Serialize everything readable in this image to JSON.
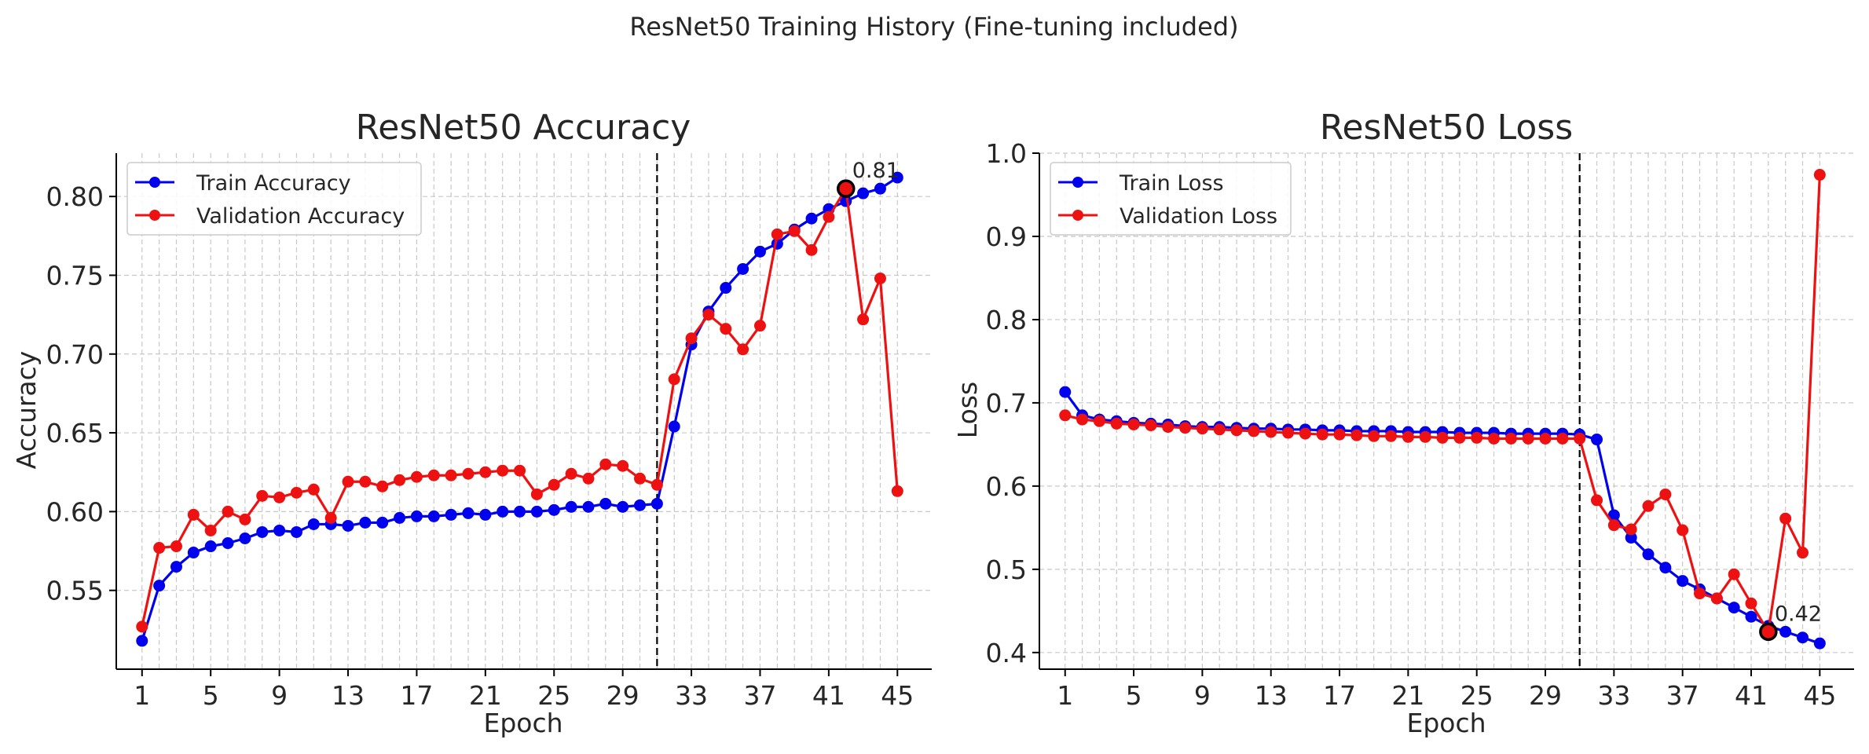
{
  "figure": {
    "suptitle": "ResNet50 Training History (Fine-tuning included)"
  },
  "chart_data": [
    {
      "type": "line",
      "title": "ResNet50 Accuracy",
      "xlabel": "Epoch",
      "ylabel": "Accuracy",
      "xlim": [
        -0.5,
        47
      ],
      "ylim": [
        0.5,
        0.8275
      ],
      "xticks": [
        1,
        5,
        9,
        13,
        17,
        21,
        25,
        29,
        33,
        37,
        41,
        45
      ],
      "yticks": [
        0.55,
        0.6,
        0.65,
        0.7,
        0.75,
        0.8
      ],
      "ytick_labels": [
        "0.55",
        "0.60",
        "0.65",
        "0.70",
        "0.75",
        "0.80"
      ],
      "grid": true,
      "legend_position": "top-left",
      "fine_tune_start_epoch": 31,
      "best": {
        "epoch": 42,
        "value": 0.805,
        "label": "0.81"
      },
      "x": [
        1,
        2,
        3,
        4,
        5,
        6,
        7,
        8,
        9,
        10,
        11,
        12,
        13,
        14,
        15,
        16,
        17,
        18,
        19,
        20,
        21,
        22,
        23,
        24,
        25,
        26,
        27,
        28,
        29,
        30,
        31,
        32,
        33,
        34,
        35,
        36,
        37,
        38,
        39,
        40,
        41,
        42,
        43,
        44,
        45
      ],
      "series": [
        {
          "name": "Train Accuracy",
          "color": "#0000ee",
          "values": [
            0.518,
            0.553,
            0.565,
            0.574,
            0.578,
            0.58,
            0.583,
            0.587,
            0.588,
            0.587,
            0.592,
            0.592,
            0.591,
            0.593,
            0.593,
            0.596,
            0.597,
            0.597,
            0.598,
            0.599,
            0.598,
            0.6,
            0.6,
            0.6,
            0.601,
            0.603,
            0.603,
            0.605,
            0.603,
            0.604,
            0.605,
            0.654,
            0.706,
            0.727,
            0.742,
            0.754,
            0.765,
            0.77,
            0.779,
            0.786,
            0.792,
            0.797,
            0.802,
            0.805,
            0.812
          ]
        },
        {
          "name": "Validation Accuracy",
          "color": "#ee1111",
          "values": [
            0.527,
            0.577,
            0.578,
            0.598,
            0.588,
            0.6,
            0.595,
            0.61,
            0.609,
            0.612,
            0.614,
            0.596,
            0.619,
            0.619,
            0.616,
            0.62,
            0.622,
            0.623,
            0.623,
            0.624,
            0.625,
            0.626,
            0.626,
            0.611,
            0.617,
            0.624,
            0.621,
            0.63,
            0.629,
            0.621,
            0.617,
            0.684,
            0.71,
            0.725,
            0.716,
            0.703,
            0.718,
            0.776,
            0.778,
            0.766,
            0.787,
            0.805,
            0.722,
            0.748,
            0.613
          ]
        }
      ]
    },
    {
      "type": "line",
      "title": "ResNet50 Loss",
      "xlabel": "Epoch",
      "ylabel": "Loss",
      "xlim": [
        -0.5,
        47
      ],
      "ylim": [
        0.38,
        1.0
      ],
      "xticks": [
        1,
        5,
        9,
        13,
        17,
        21,
        25,
        29,
        33,
        37,
        41,
        45
      ],
      "yticks": [
        0.4,
        0.5,
        0.6,
        0.7,
        0.8,
        0.9,
        1.0
      ],
      "ytick_labels": [
        "0.4",
        "0.5",
        "0.6",
        "0.7",
        "0.8",
        "0.9",
        "1.0"
      ],
      "grid": true,
      "legend_position": "top-left",
      "fine_tune_start_epoch": 31,
      "best": {
        "epoch": 42,
        "value": 0.425,
        "label": "0.42"
      },
      "x": [
        1,
        2,
        3,
        4,
        5,
        6,
        7,
        8,
        9,
        10,
        11,
        12,
        13,
        14,
        15,
        16,
        17,
        18,
        19,
        20,
        21,
        22,
        23,
        24,
        25,
        26,
        27,
        28,
        29,
        30,
        31,
        32,
        33,
        34,
        35,
        36,
        37,
        38,
        39,
        40,
        41,
        42,
        43,
        44,
        45
      ],
      "series": [
        {
          "name": "Train Loss",
          "color": "#0000ee",
          "values": [
            0.713,
            0.685,
            0.68,
            0.678,
            0.676,
            0.675,
            0.674,
            0.672,
            0.671,
            0.671,
            0.67,
            0.669,
            0.669,
            0.668,
            0.668,
            0.667,
            0.667,
            0.666,
            0.666,
            0.666,
            0.665,
            0.665,
            0.665,
            0.664,
            0.664,
            0.664,
            0.663,
            0.663,
            0.663,
            0.663,
            0.662,
            0.656,
            0.565,
            0.538,
            0.518,
            0.502,
            0.486,
            0.476,
            0.465,
            0.454,
            0.443,
            0.432,
            0.425,
            0.418,
            0.411
          ]
        },
        {
          "name": "Validation Loss",
          "color": "#ee1111",
          "values": [
            0.685,
            0.68,
            0.678,
            0.675,
            0.674,
            0.673,
            0.671,
            0.67,
            0.669,
            0.668,
            0.667,
            0.666,
            0.665,
            0.664,
            0.663,
            0.662,
            0.662,
            0.661,
            0.66,
            0.66,
            0.659,
            0.659,
            0.658,
            0.658,
            0.658,
            0.657,
            0.657,
            0.657,
            0.657,
            0.657,
            0.657,
            0.583,
            0.553,
            0.548,
            0.576,
            0.59,
            0.547,
            0.471,
            0.465,
            0.494,
            0.459,
            0.425,
            0.561,
            0.52,
            0.974
          ]
        }
      ]
    }
  ]
}
